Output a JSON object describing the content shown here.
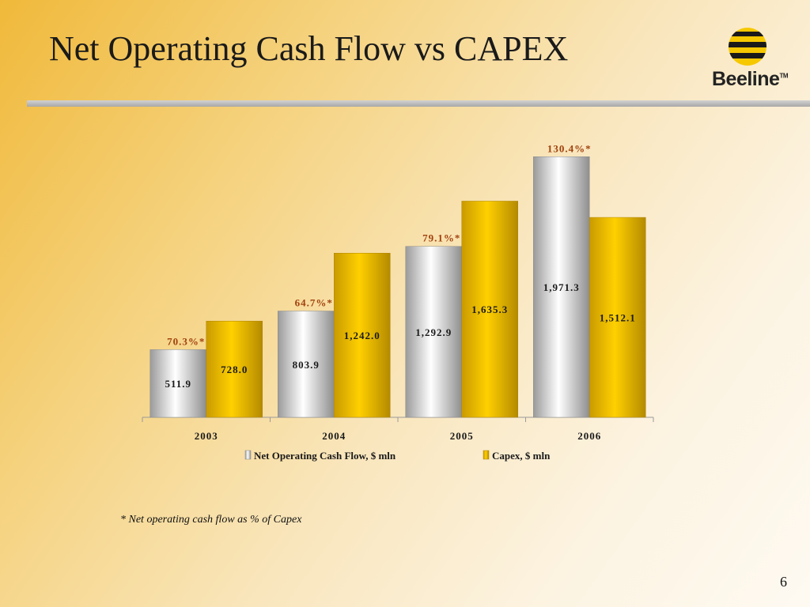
{
  "slide": {
    "title": "Net Operating Cash Flow vs CAPEX",
    "logo_text": "Beeline",
    "logo_tm": "TM",
    "footnote": "* Net operating cash flow as % of Capex",
    "page_number": "6"
  },
  "colors": {
    "cash_flow": "#b8b8b8",
    "capex": "#f2c200",
    "percent_label": "#a0410d"
  },
  "chart_data": {
    "type": "bar",
    "categories": [
      "2003",
      "2004",
      "2005",
      "2006"
    ],
    "series": [
      {
        "name": "Net Operating Cash Flow, $ mln",
        "values": [
          511.9,
          803.9,
          1292.9,
          1971.3
        ],
        "labels": [
          "511.9",
          "803.9",
          "1,292.9",
          "1,971.3"
        ]
      },
      {
        "name": "Capex, $ mln",
        "values": [
          728.0,
          1242.0,
          1635.3,
          1512.1
        ],
        "labels": [
          "728.0",
          "1,242.0",
          "1,635.3",
          "1,512.1"
        ]
      }
    ],
    "annotations": [
      "70.3%*",
      "64.7%*",
      "79.1%*",
      "130.4%*"
    ],
    "title": "",
    "xlabel": "",
    "ylabel": "",
    "legend": "bottom"
  }
}
